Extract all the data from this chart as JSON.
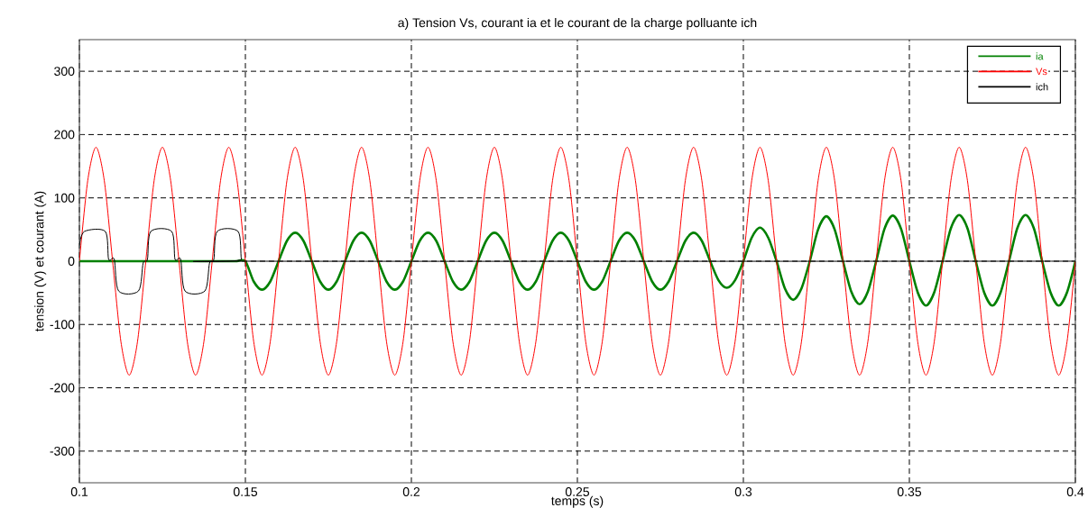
{
  "chart_data": {
    "type": "line",
    "title": "a) Tension Vs, courant ia et le courant de la charge polluante ich",
    "xlabel": "temps (s)",
    "ylabel": "tension (V) et courant (A)",
    "x": [
      0.1,
      0.1025,
      0.105,
      0.1075,
      0.11,
      0.1125,
      0.115,
      0.1175,
      0.12,
      0.1225,
      0.125,
      0.1275,
      0.13,
      0.1325,
      0.135,
      0.1375,
      0.14,
      0.1425,
      0.145,
      0.1475,
      0.15,
      0.1525,
      0.155,
      0.1575,
      0.16,
      0.1625,
      0.165,
      0.1675,
      0.17,
      0.1725,
      0.175,
      0.1775,
      0.18,
      0.1825,
      0.185,
      0.1875,
      0.19,
      0.1925,
      0.195,
      0.1975,
      0.2,
      0.2025,
      0.205,
      0.2075,
      0.21,
      0.2125,
      0.215,
      0.2175,
      0.22,
      0.2225,
      0.225,
      0.2275,
      0.23,
      0.2325,
      0.235,
      0.2375,
      0.24,
      0.2425,
      0.245,
      0.2475,
      0.25,
      0.2525,
      0.255,
      0.2575,
      0.26,
      0.2625,
      0.265,
      0.2675,
      0.27,
      0.2725,
      0.275,
      0.2775,
      0.28,
      0.2825,
      0.285,
      0.2875,
      0.29,
      0.2925,
      0.295,
      0.2975,
      0.3,
      0.3025,
      0.305,
      0.3075,
      0.31,
      0.3125,
      0.315,
      0.3175,
      0.32,
      0.3225,
      0.325,
      0.3275,
      0.33,
      0.3325,
      0.335,
      0.3375,
      0.34,
      0.3425,
      0.345,
      0.3475,
      0.35,
      0.3525,
      0.355,
      0.3575,
      0.36,
      0.3625,
      0.365,
      0.3675,
      0.37,
      0.3725,
      0.375,
      0.3775,
      0.38,
      0.3825,
      0.385,
      0.3875,
      0.39,
      0.3925,
      0.395,
      0.3975,
      0.4
    ],
    "series": [
      {
        "name": "ia",
        "color": "#008000",
        "values": [
          0,
          0,
          0,
          0,
          0,
          0,
          0,
          0,
          0,
          0,
          0,
          0,
          0,
          0,
          0,
          0,
          0,
          0,
          0,
          0,
          0,
          -32,
          -45,
          -32,
          0,
          32,
          45,
          32,
          0,
          -32,
          -45,
          -32,
          0,
          32,
          45,
          32,
          0,
          -32,
          -45,
          -32,
          0,
          32,
          45,
          32,
          0,
          -32,
          -45,
          -32,
          0,
          32,
          45,
          32,
          0,
          -32,
          -45,
          -32,
          0,
          32,
          45,
          32,
          0,
          -32,
          -45,
          -32,
          0,
          32,
          45,
          32,
          0,
          -32,
          -45,
          -32,
          0,
          32,
          45,
          32,
          0,
          -30,
          -42,
          -30,
          0,
          37,
          53,
          37,
          0,
          -43,
          -61,
          -43,
          0,
          50,
          71,
          50,
          0,
          -48,
          -68,
          -48,
          0,
          51,
          72,
          51,
          0,
          -49,
          -70,
          -49,
          0,
          52,
          73,
          52,
          0,
          -49,
          -70,
          -49,
          0,
          52,
          73,
          52,
          0,
          -49,
          -70,
          -49,
          0
        ]
      },
      {
        "name": "Vs",
        "color": "#ff0000",
        "values": [
          0,
          127,
          180,
          127,
          0,
          -127,
          -180,
          -127,
          0,
          127,
          180,
          127,
          0,
          -127,
          -180,
          -127,
          0,
          127,
          180,
          127,
          0,
          -127,
          -180,
          -127,
          0,
          127,
          180,
          127,
          0,
          -127,
          -180,
          -127,
          0,
          127,
          180,
          127,
          0,
          -127,
          -180,
          -127,
          0,
          127,
          180,
          127,
          0,
          -127,
          -180,
          -127,
          0,
          127,
          180,
          127,
          0,
          -127,
          -180,
          -127,
          0,
          127,
          180,
          127,
          0,
          -127,
          -180,
          -127,
          0,
          127,
          180,
          127,
          0,
          -127,
          -180,
          -127,
          0,
          127,
          180,
          127,
          0,
          -127,
          -180,
          -127,
          0,
          127,
          180,
          127,
          0,
          -127,
          -180,
          -127,
          0,
          127,
          180,
          127,
          0,
          -127,
          -180,
          -127,
          0,
          127,
          180,
          127,
          0,
          -127,
          -180,
          -127,
          0,
          127,
          180,
          127,
          0,
          -127,
          -180,
          -127,
          0,
          127,
          180,
          127,
          0,
          -127,
          -180,
          -127,
          0
        ]
      },
      {
        "name": "ich",
        "color": "#000000",
        "x": [
          0.1,
          0.1015,
          0.1078,
          0.1088,
          0.1105,
          0.1118,
          0.1178,
          0.1192,
          0.1205,
          0.1215,
          0.1278,
          0.1288,
          0.1305,
          0.1318,
          0.1378,
          0.1392,
          0.1405,
          0.1415,
          0.1478,
          0.1488,
          0.15,
          0.4
        ],
        "values": [
          25,
          47,
          47,
          3,
          3,
          -47,
          -47,
          -3,
          3,
          47,
          47,
          3,
          3,
          -47,
          -47,
          -3,
          3,
          47,
          47,
          3,
          0,
          0
        ]
      }
    ],
    "xlim": [
      0.1,
      0.4
    ],
    "ylim": [
      -350,
      350
    ],
    "xticks": [
      0.1,
      0.15,
      0.2,
      0.25,
      0.3,
      0.35,
      0.4
    ],
    "yticks": [
      -300,
      -200,
      -100,
      0,
      100,
      200,
      300
    ],
    "grid": true,
    "legend": "top right"
  }
}
